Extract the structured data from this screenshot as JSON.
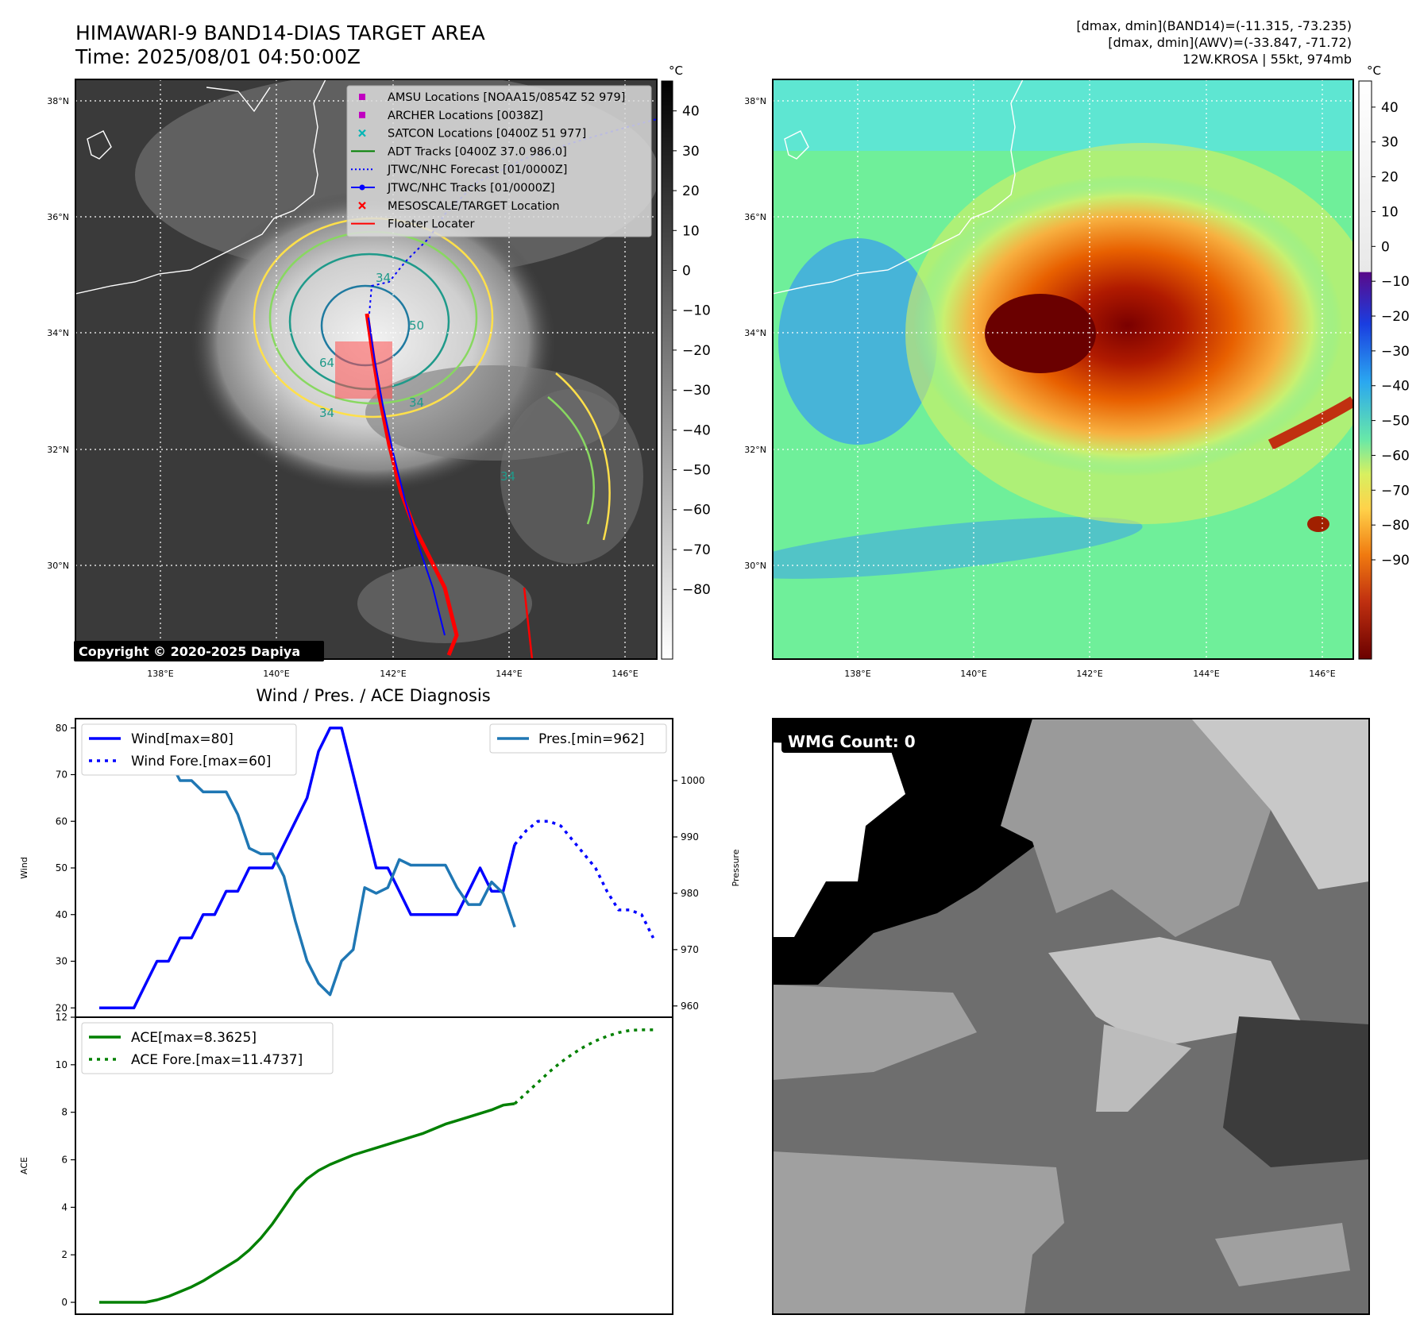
{
  "header": {
    "title_line1": "HIMAWARI-9 BAND14-DIAS TARGET AREA",
    "title_line2": "Time: 2025/08/01 04:50:00Z",
    "stats_line1": "[dmax, dmin](BAND14)=(-11.315, -73.235)",
    "stats_line2": "[dmax, dmin](AWV)=(-33.847, -71.72)",
    "stats_line3": "12W.KROSA | 55kt, 974mb"
  },
  "copyright": "Copyright © 2020-2025 Dapiya",
  "colorbar_unit": "°C",
  "map": {
    "lat_ticks": [
      "38°N",
      "36°N",
      "34°N",
      "32°N",
      "30°N"
    ],
    "lon_ticks": [
      "138°E",
      "140°E",
      "142°E",
      "144°E",
      "146°E"
    ]
  },
  "ir_colorbar_ticks": [
    "40",
    "30",
    "20",
    "10",
    "0",
    "−10",
    "−20",
    "−30",
    "−40",
    "−50",
    "−60",
    "−70",
    "−80"
  ],
  "awv_colorbar_ticks": [
    "40",
    "30",
    "20",
    "10",
    "0",
    "−10",
    "−20",
    "−30",
    "−40",
    "−50",
    "−60",
    "−70",
    "−80",
    "−90"
  ],
  "legend": [
    {
      "label": "AMSU Locations [NOAA15/0854Z 52 979]",
      "symbol": "square",
      "color": "#c000c0"
    },
    {
      "label": "ARCHER Locations [0038Z]",
      "symbol": "square",
      "color": "#c000c0"
    },
    {
      "label": "SATCON Locations [0400Z 51 977]",
      "symbol": "x",
      "color": "#00b5b5"
    },
    {
      "label": "ADT Tracks [0400Z 37.0 986.0]",
      "symbol": "line",
      "color": "#008000"
    },
    {
      "label": "JTWC/NHC Forecast [01/0000Z]",
      "symbol": "dotted",
      "color": "#0000ff"
    },
    {
      "label": "JTWC/NHC Tracks [01/0000Z]",
      "symbol": "line-dot",
      "color": "#0000ff"
    },
    {
      "label": "MESOSCALE/TARGET Location",
      "symbol": "x",
      "color": "#ff0000"
    },
    {
      "label": "Floater Locater",
      "symbol": "line",
      "color": "#ff0000"
    }
  ],
  "contour_labels": [
    "34",
    "64",
    "34",
    "50",
    "34",
    "34"
  ],
  "wmg_label": "WMG Count: 0",
  "chart_data": [
    {
      "type": "line",
      "title": "Wind / Pres. / ACE Diagnosis",
      "ylabel": "Wind",
      "ylim": [
        18,
        82
      ],
      "yticks": [
        20,
        30,
        40,
        50,
        60,
        70,
        80
      ],
      "x_range": [
        0,
        49
      ],
      "series": [
        {
          "name": "Wind[max=80]",
          "color": "#0000ff",
          "style": "solid",
          "x": [
            0,
            1,
            2,
            3,
            4,
            5,
            6,
            7,
            8,
            9,
            10,
            11,
            12,
            13,
            14,
            15,
            16,
            17,
            18,
            19,
            20,
            21,
            22,
            23,
            24,
            25,
            26,
            27,
            28,
            29,
            30,
            31,
            32,
            33,
            34,
            35,
            36
          ],
          "values": [
            20,
            20,
            20,
            20,
            25,
            30,
            30,
            35,
            35,
            40,
            40,
            45,
            45,
            50,
            50,
            50,
            55,
            60,
            65,
            75,
            80,
            80,
            70,
            60,
            50,
            50,
            45,
            40,
            40,
            40,
            40,
            40,
            45,
            50,
            45,
            45,
            55
          ]
        },
        {
          "name": "Wind Fore.[max=60]",
          "color": "#0000ff",
          "style": "dotted",
          "x": [
            36,
            37,
            38,
            39,
            40,
            41,
            42,
            43,
            44,
            45,
            46,
            47,
            48
          ],
          "values": [
            55,
            58,
            60,
            60,
            59,
            56,
            53,
            50,
            45,
            41,
            41,
            40,
            35
          ]
        }
      ]
    },
    {
      "type": "line",
      "ylabel": "Pressure",
      "ylim": [
        958,
        1011
      ],
      "yticks": [
        960,
        970,
        980,
        990,
        1000
      ],
      "x_range": [
        0,
        49
      ],
      "series": [
        {
          "name": "Pres.[min=962]",
          "color": "#1f77b4",
          "style": "solid",
          "x": [
            0,
            1,
            2,
            3,
            4,
            5,
            6,
            7,
            8,
            9,
            10,
            11,
            12,
            13,
            14,
            15,
            16,
            17,
            18,
            19,
            20,
            21,
            22,
            23,
            24,
            25,
            26,
            27,
            28,
            29,
            30,
            31,
            32,
            33,
            34,
            35,
            36
          ],
          "values": [
            1008,
            1008,
            1008,
            1005,
            1005,
            1004,
            1004,
            1000,
            1000,
            998,
            998,
            998,
            994,
            988,
            987,
            987,
            983,
            975,
            968,
            964,
            962,
            968,
            970,
            981,
            980,
            981,
            986,
            985,
            985,
            985,
            985,
            981,
            978,
            978,
            982,
            980,
            974
          ]
        }
      ]
    },
    {
      "type": "line",
      "ylabel": "ACE",
      "ylim": [
        -0.5,
        12
      ],
      "yticks": [
        0,
        2,
        4,
        6,
        8,
        10,
        12
      ],
      "x_range": [
        0,
        49
      ],
      "series": [
        {
          "name": "ACE[max=8.3625]",
          "color": "#008000",
          "style": "solid",
          "x": [
            0,
            1,
            2,
            3,
            4,
            5,
            6,
            7,
            8,
            9,
            10,
            11,
            12,
            13,
            14,
            15,
            16,
            17,
            18,
            19,
            20,
            21,
            22,
            23,
            24,
            25,
            26,
            27,
            28,
            29,
            30,
            31,
            32,
            33,
            34,
            35,
            36
          ],
          "values": [
            0,
            0,
            0,
            0,
            0,
            0.1,
            0.25,
            0.45,
            0.65,
            0.9,
            1.2,
            1.5,
            1.8,
            2.2,
            2.7,
            3.3,
            4.0,
            4.7,
            5.2,
            5.55,
            5.8,
            6.0,
            6.2,
            6.35,
            6.5,
            6.65,
            6.8,
            6.95,
            7.1,
            7.3,
            7.5,
            7.65,
            7.8,
            7.95,
            8.1,
            8.3,
            8.36
          ]
        },
        {
          "name": "ACE Fore.[max=11.4737]",
          "color": "#008000",
          "style": "dotted",
          "x": [
            36,
            37,
            38,
            39,
            40,
            41,
            42,
            43,
            44,
            45,
            46,
            47,
            48
          ],
          "values": [
            8.36,
            8.8,
            9.25,
            9.7,
            10.1,
            10.45,
            10.75,
            11.0,
            11.2,
            11.35,
            11.45,
            11.47,
            11.47
          ]
        }
      ]
    }
  ]
}
